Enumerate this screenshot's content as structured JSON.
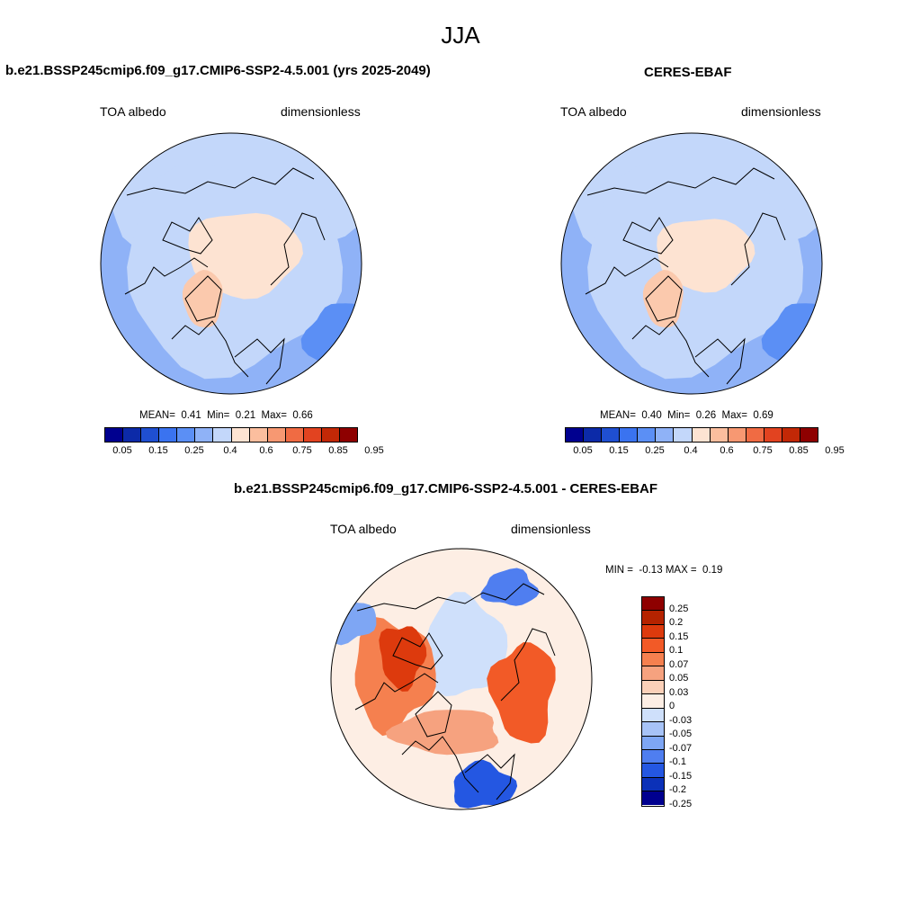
{
  "season": "JJA",
  "panels": [
    {
      "title": "b.e21.BSSP245cmip6.f09_g17.CMIP6-SSP2-4.5.001 (yrs 2025-2049)",
      "variable": "TOA albedo",
      "units": "dimensionless",
      "stats": {
        "mean_label": "MEAN=",
        "mean": "0.41",
        "min_label": "Min=",
        "min": "0.21",
        "max_label": "Max=",
        "max": "0.66"
      }
    },
    {
      "title": "CERES-EBAF",
      "variable": "TOA albedo",
      "units": "dimensionless",
      "stats": {
        "mean_label": "MEAN=",
        "mean": "0.40",
        "min_label": "Min=",
        "min": "0.26",
        "max_label": "Max=",
        "max": "0.69"
      }
    },
    {
      "title": "b.e21.BSSP245cmip6.f09_g17.CMIP6-SSP2-4.5.001 - CERES-EBAF",
      "variable": "TOA albedo",
      "units": "dimensionless",
      "stats": {
        "min_label": "MIN =",
        "min": "-0.13",
        "max_label": "MAX =",
        "max": "0.19"
      }
    }
  ],
  "chart_data": [
    {
      "type": "heatmap",
      "projection": "north polar stereographic",
      "title": "b.e21.BSSP245cmip6.f09_g17.CMIP6-SSP2-4.5.001 (yrs 2025-2049)",
      "field": "TOA albedo",
      "units": "dimensionless",
      "mean": 0.41,
      "min": 0.21,
      "max": 0.66,
      "colorbar_ticks": [
        "0.05",
        "0.15",
        "0.25",
        "0.4",
        "0.6",
        "0.75",
        "0.85",
        "0.95"
      ]
    },
    {
      "type": "heatmap",
      "projection": "north polar stereographic",
      "title": "CERES-EBAF",
      "field": "TOA albedo",
      "units": "dimensionless",
      "mean": 0.4,
      "min": 0.26,
      "max": 0.69,
      "colorbar_ticks": [
        "0.05",
        "0.15",
        "0.25",
        "0.4",
        "0.6",
        "0.75",
        "0.85",
        "0.95"
      ]
    },
    {
      "type": "heatmap",
      "projection": "north polar stereographic",
      "title": "b.e21.BSSP245cmip6.f09_g17.CMIP6-SSP2-4.5.001 - CERES-EBAF",
      "field": "TOA albedo",
      "units": "dimensionless",
      "min": -0.13,
      "max": 0.19,
      "colorbar_ticks": [
        "0.25",
        "0.2",
        "0.15",
        "0.1",
        "0.07",
        "0.05",
        "0.03",
        "0",
        "-0.03",
        "-0.05",
        "-0.07",
        "-0.1",
        "-0.15",
        "-0.2",
        "-0.25"
      ]
    }
  ],
  "colorbar_abs": {
    "colors": [
      "#00008f",
      "#0c2aa8",
      "#1f4fd1",
      "#3a73f0",
      "#5b8ff5",
      "#8fb2f7",
      "#c3d7fa",
      "#fde3d2",
      "#fbbe9e",
      "#f79872",
      "#f06b43",
      "#e24320",
      "#c22806",
      "#8e0000"
    ],
    "ticks": [
      "0.05",
      "0.15",
      "0.25",
      "0.4",
      "0.6",
      "0.75",
      "0.85",
      "0.95"
    ]
  },
  "colorbar_diff": {
    "colors": [
      "#8e0000",
      "#b52300",
      "#dd3a0d",
      "#f25a27",
      "#f5804f",
      "#f6a27f",
      "#fbd0b8",
      "#fdeee4",
      "#cfe0fb",
      "#a7c3f7",
      "#7ea6f4",
      "#4f7ef0",
      "#2457e2",
      "#0b31b8",
      "#00008f"
    ],
    "ticks": [
      "0.25",
      "0.2",
      "0.15",
      "0.1",
      "0.07",
      "0.05",
      "0.03",
      "0",
      "-0.03",
      "-0.05",
      "-0.07",
      "-0.1",
      "-0.15",
      "-0.2",
      "-0.25"
    ]
  }
}
